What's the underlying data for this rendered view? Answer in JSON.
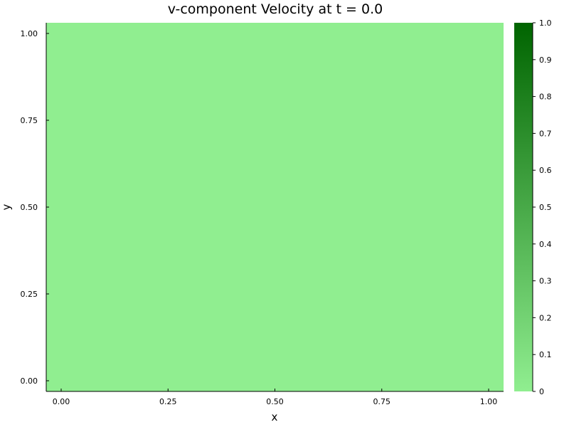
{
  "chart_data": {
    "type": "heatmap",
    "title": "v-component Velocity at t = 0.0",
    "xlabel": "x",
    "ylabel": "y",
    "xlim": [
      0.0,
      1.0
    ],
    "ylim": [
      0.0,
      1.0
    ],
    "x_ticks": [
      "0.00",
      "0.25",
      "0.50",
      "0.75",
      "1.00"
    ],
    "x_tick_values": [
      0.0,
      0.25,
      0.5,
      0.75,
      1.0
    ],
    "y_ticks": [
      "0.00",
      "0.25",
      "0.50",
      "0.75",
      "1.00"
    ],
    "y_tick_values": [
      0.0,
      0.25,
      0.5,
      0.75,
      1.0
    ],
    "field_value": 0,
    "grid": false,
    "colorbar": {
      "range": [
        0,
        1
      ],
      "ticks": [
        "0",
        "0.1",
        "0.2",
        "0.3",
        "0.4",
        "0.5",
        "0.6",
        "0.7",
        "0.8",
        "0.9",
        "1.0"
      ],
      "tick_values": [
        0,
        0.1,
        0.2,
        0.3,
        0.4,
        0.5,
        0.6,
        0.7,
        0.8,
        0.9,
        1.0
      ],
      "color_low": "#90ee90",
      "color_high": "#006400",
      "placement": "right"
    }
  }
}
